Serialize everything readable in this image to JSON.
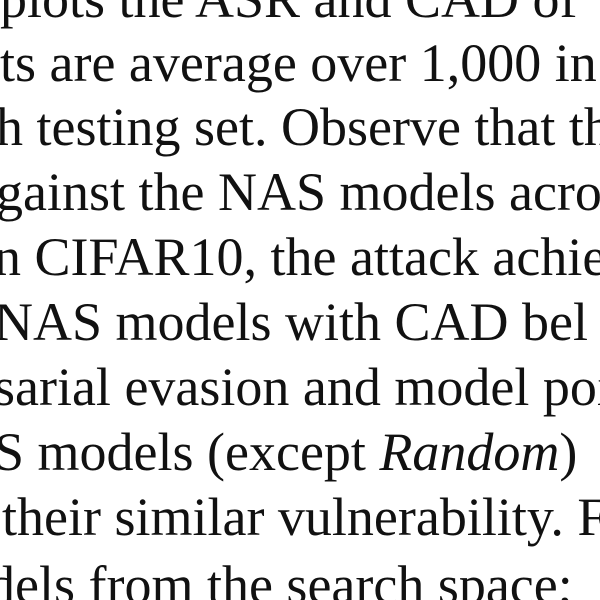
{
  "paragraph": {
    "lines": [
      "plots the ASR and CAD of",
      "ts are average over 1,000 in",
      "h testing set. Observe that th",
      "gainst the NAS models acros",
      "n CIFAR10, the attack achie",
      "NAS models with CAD bel",
      "sarial evasion and model poi",
      {
        "before": "S models (except ",
        "italic": "Random",
        "after": ")"
      },
      "their similar vulnerability. F",
      "dels from the search space;"
    ]
  }
}
